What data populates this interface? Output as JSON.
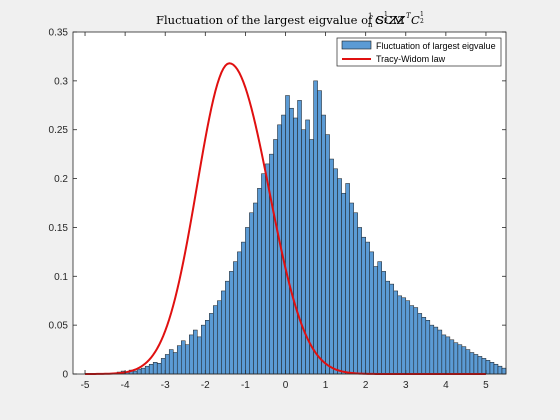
{
  "chart_data": {
    "type": "bar",
    "title_main": "Fluctuation of the largest eigvalue of SCM ",
    "title_math_C1": "C",
    "title_math_ZZ": "ZZ",
    "title_math_T": "T",
    "title_math_C2": "C",
    "title_frac_1": "1",
    "title_frac_n": "n",
    "title_frac_half_num": "1",
    "title_frac_half_den": "2",
    "xlim": [
      -5.3,
      5.5
    ],
    "ylim": [
      0,
      0.35
    ],
    "xticks": [
      -5,
      -4,
      -3,
      -2,
      -1,
      0,
      1,
      2,
      3,
      4,
      5
    ],
    "yticks": [
      0,
      0.05,
      0.1,
      0.15,
      0.2,
      0.25,
      0.3,
      0.35
    ],
    "xtick_labels": [
      "-5",
      "-4",
      "-3",
      "-2",
      "-1",
      "0",
      "1",
      "2",
      "3",
      "4",
      "5"
    ],
    "ytick_labels": [
      "0",
      "0.05",
      "0.1",
      "0.15",
      "0.2",
      "0.25",
      "0.3",
      "0.35"
    ],
    "grid": false,
    "legend_position": "top-right",
    "bin_start": -4.3,
    "bin_width": 0.1,
    "histogram_values": [
      0.001,
      0.002,
      0.003,
      0.002,
      0.004,
      0.003,
      0.005,
      0.006,
      0.008,
      0.01,
      0.012,
      0.011,
      0.016,
      0.02,
      0.025,
      0.022,
      0.029,
      0.034,
      0.03,
      0.04,
      0.045,
      0.038,
      0.05,
      0.055,
      0.062,
      0.07,
      0.075,
      0.085,
      0.095,
      0.105,
      0.115,
      0.125,
      0.135,
      0.15,
      0.165,
      0.175,
      0.19,
      0.205,
      0.215,
      0.225,
      0.24,
      0.255,
      0.265,
      0.285,
      0.272,
      0.262,
      0.28,
      0.25,
      0.26,
      0.24,
      0.3,
      0.29,
      0.265,
      0.245,
      0.22,
      0.21,
      0.2,
      0.185,
      0.195,
      0.175,
      0.165,
      0.15,
      0.14,
      0.135,
      0.125,
      0.11,
      0.115,
      0.105,
      0.095,
      0.092,
      0.085,
      0.08,
      0.078,
      0.075,
      0.07,
      0.068,
      0.062,
      0.058,
      0.055,
      0.05,
      0.048,
      0.045,
      0.04,
      0.038,
      0.035,
      0.032,
      0.03,
      0.028,
      0.025,
      0.022,
      0.02,
      0.018,
      0.016,
      0.014,
      0.012,
      0.01,
      0.008,
      0.006
    ],
    "series": [
      {
        "name": "Fluctuation of largest eigvalue",
        "kind": "histogram",
        "color": "#5b9bd5"
      },
      {
        "name": "Tracy-Widom law",
        "kind": "line",
        "color": "#e01010"
      }
    ]
  }
}
